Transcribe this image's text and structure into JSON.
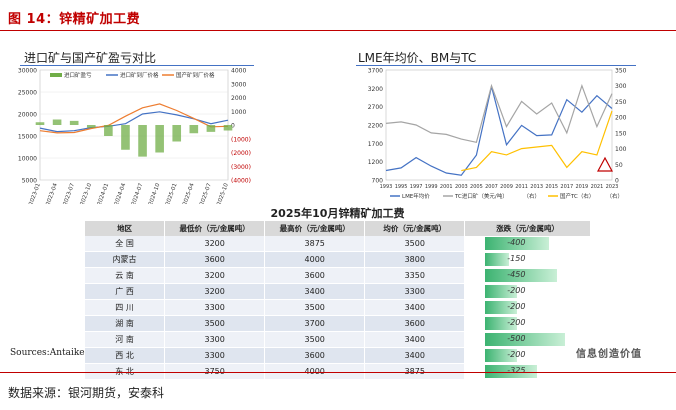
{
  "figure": {
    "title": "图 14：锌精矿加工费",
    "source": "数据来源：银河期货，安泰科"
  },
  "colors": {
    "accent": "#c00000",
    "blue": "#4472c4",
    "orange": "#ed7d31",
    "green": "#70ad47",
    "gold": "#ffc000",
    "grey": "#a5a5a5"
  },
  "left_chart": {
    "title": "进口矿与国产矿盈亏对比",
    "legend": [
      "进口矿盈亏",
      "进口矿到厂价格",
      "国产矿到厂价格"
    ],
    "y_left_ticks": [
      "30000",
      "25000",
      "20000",
      "15000",
      "10000",
      "5000"
    ],
    "y_right_ticks": [
      "4000",
      "3000",
      "2000",
      "1000",
      "0",
      "(1000)",
      "(2000)",
      "(3000)",
      "(4000)"
    ],
    "x_ticks": [
      "2023-01",
      "2023-04",
      "2023-07",
      "2023-10",
      "2024-01",
      "2024-04",
      "2024-07",
      "2024-10",
      "2025-01",
      "2025-04",
      "2025-07",
      "2025-10"
    ]
  },
  "right_chart": {
    "title": "LME年均价、BM与TC",
    "legend": [
      "LME年均价",
      "TC进口矿（美元/吨）",
      "（右）",
      "国产TC（右）",
      "（右）"
    ],
    "y_left_ticks": [
      "3700",
      "3200",
      "2700",
      "2200",
      "1700",
      "1200",
      "700"
    ],
    "y_right_ticks": [
      "350",
      "300",
      "250",
      "200",
      "150",
      "100",
      "50",
      "0"
    ],
    "x_ticks": [
      "1993",
      "1995",
      "1997",
      "1999",
      "2001",
      "2003",
      "2005",
      "2007",
      "2009",
      "2011",
      "2013",
      "2015",
      "2017",
      "2019",
      "2021",
      "2023"
    ]
  },
  "table": {
    "title": "2025年10月锌精矿加工费",
    "headers": [
      "地区",
      "最低价（元/金属吨）",
      "最高价（元/金属吨）",
      "均价（元/金属吨）",
      "涨跌（元/金属吨）"
    ],
    "rows": [
      {
        "region": "全 国",
        "min": "3200",
        "max": "3875",
        "avg": "3500",
        "chg": "-400",
        "v": 400
      },
      {
        "region": "内蒙古",
        "min": "3600",
        "max": "4000",
        "avg": "3800",
        "chg": "-150",
        "v": 150
      },
      {
        "region": "云 南",
        "min": "3200",
        "max": "3600",
        "avg": "3350",
        "chg": "-450",
        "v": 450
      },
      {
        "region": "广 西",
        "min": "3200",
        "max": "3400",
        "avg": "3300",
        "chg": "-200",
        "v": 200
      },
      {
        "region": "四 川",
        "min": "3300",
        "max": "3500",
        "avg": "3400",
        "chg": "-200",
        "v": 200
      },
      {
        "region": "湖 南",
        "min": "3500",
        "max": "3700",
        "avg": "3600",
        "chg": "-200",
        "v": 200
      },
      {
        "region": "河 南",
        "min": "3300",
        "max": "3500",
        "avg": "3400",
        "chg": "-500",
        "v": 500
      },
      {
        "region": "西 北",
        "min": "3300",
        "max": "3600",
        "avg": "3400",
        "chg": "-200",
        "v": 200
      },
      {
        "region": "东 北",
        "min": "3750",
        "max": "4000",
        "avg": "3875",
        "chg": "-325",
        "v": 325
      }
    ],
    "footnote": "Sources:Antaike",
    "watermark": "信息创造价值"
  },
  "chart_data": [
    {
      "type": "line",
      "title": "进口矿与国产矿盈亏对比",
      "x": [
        "2023-01",
        "2023-04",
        "2023-07",
        "2023-10",
        "2024-01",
        "2024-04",
        "2024-07",
        "2024-10",
        "2025-01",
        "2025-04",
        "2025-07",
        "2025-10"
      ],
      "series": [
        {
          "name": "进口矿到厂价格",
          "axis": "left",
          "values": [
            16800,
            16000,
            16200,
            16900,
            17200,
            17800,
            20000,
            20500,
            19800,
            18900,
            17800,
            18600
          ]
        },
        {
          "name": "国产矿到厂价格",
          "axis": "left",
          "values": [
            16200,
            15700,
            15800,
            16700,
            17400,
            19500,
            21400,
            22300,
            20800,
            19000,
            17100,
            17200
          ]
        },
        {
          "name": "进口矿盈亏",
          "axis": "right",
          "type": "bar",
          "values": [
            200,
            400,
            300,
            -200,
            -800,
            -1800,
            -2300,
            -2000,
            -1200,
            -600,
            -500,
            -400
          ]
        }
      ],
      "ylim_left": [
        5000,
        30000
      ],
      "ylim_right": [
        -4000,
        4000
      ]
    },
    {
      "type": "line",
      "title": "LME年均价、BM与TC",
      "x": [
        1993,
        1995,
        1997,
        1999,
        2001,
        2003,
        2005,
        2007,
        2009,
        2011,
        2013,
        2015,
        2017,
        2019,
        2021,
        2023
      ],
      "series": [
        {
          "name": "LME年均价",
          "axis": "left",
          "values": [
            960,
            1030,
            1310,
            1080,
            890,
            830,
            1380,
            3250,
            1660,
            2190,
            1910,
            1930,
            2890,
            2550,
            3000,
            2650
          ]
        },
        {
          "name": "TC进口矿（美元/吨）",
          "axis": "right",
          "values": [
            180,
            185,
            175,
            150,
            145,
            130,
            120,
            300,
            170,
            250,
            210,
            245,
            150,
            300,
            170,
            275
          ]
        },
        {
          "name": "国产TC（右）",
          "axis": "right",
          "values": [
            null,
            null,
            null,
            null,
            null,
            30,
            40,
            90,
            80,
            100,
            105,
            110,
            40,
            90,
            80,
            220
          ]
        }
      ],
      "ylim_left": [
        700,
        3700
      ],
      "ylim_right": [
        0,
        350
      ]
    }
  ]
}
